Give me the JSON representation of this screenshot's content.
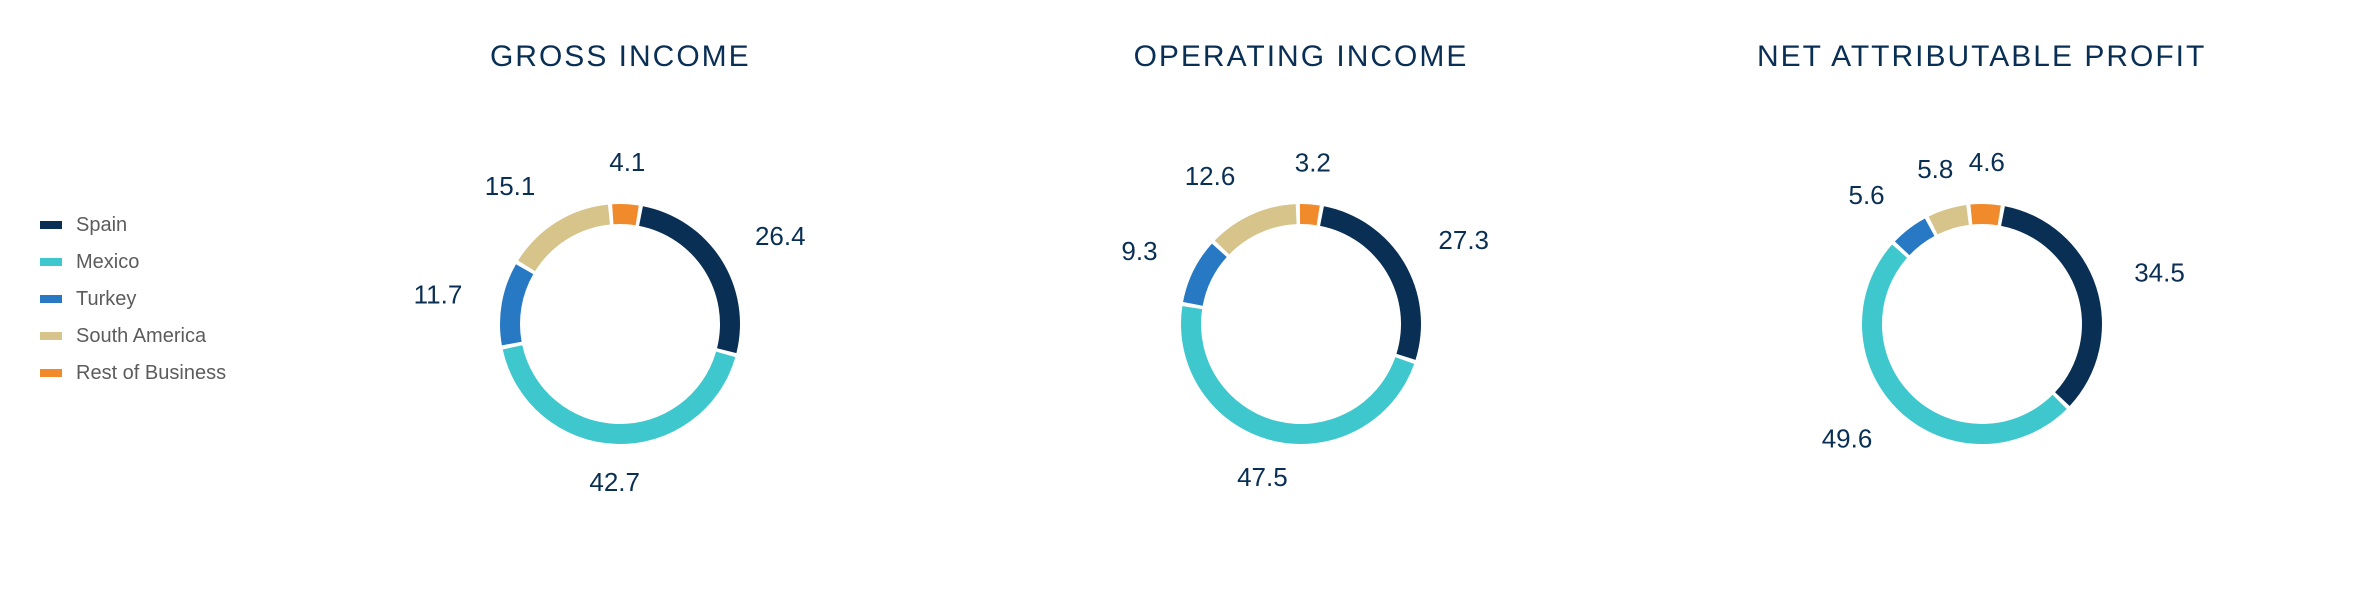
{
  "background_color": "#ffffff",
  "title_color": "#0a2f55",
  "title_fontsize": 30,
  "label_color": "#0a2f55",
  "label_fontsize": 26,
  "legend_text_color": "#5c5c5c",
  "legend_fontsize": 20,
  "donut": {
    "outer_radius": 120,
    "inner_radius": 100,
    "gap_deg": 2,
    "label_offset": 40,
    "start_angle_deg": 10
  },
  "categories": [
    {
      "key": "spain",
      "label": "Spain",
      "color": "#0a2f55"
    },
    {
      "key": "mexico",
      "label": "Mexico",
      "color": "#3ec7cc"
    },
    {
      "key": "turkey",
      "label": "Turkey",
      "color": "#2779c4"
    },
    {
      "key": "sam",
      "label": "South America",
      "color": "#d6c48a"
    },
    {
      "key": "rest",
      "label": "Rest of Business",
      "color": "#f08a2b"
    }
  ],
  "charts": [
    {
      "title": "GROSS INCOME",
      "values": {
        "spain": 26.4,
        "mexico": 42.7,
        "turkey": 11.7,
        "sam": 15.1,
        "rest": 4.1
      }
    },
    {
      "title": "OPERATING INCOME",
      "values": {
        "spain": 27.3,
        "mexico": 47.5,
        "turkey": 9.3,
        "sam": 12.6,
        "rest": 3.2
      }
    },
    {
      "title": "NET ATTRIBUTABLE PROFIT",
      "values": {
        "spain": 34.5,
        "mexico": 49.6,
        "turkey": 5.6,
        "sam": 5.8,
        "rest": 4.6
      }
    }
  ]
}
